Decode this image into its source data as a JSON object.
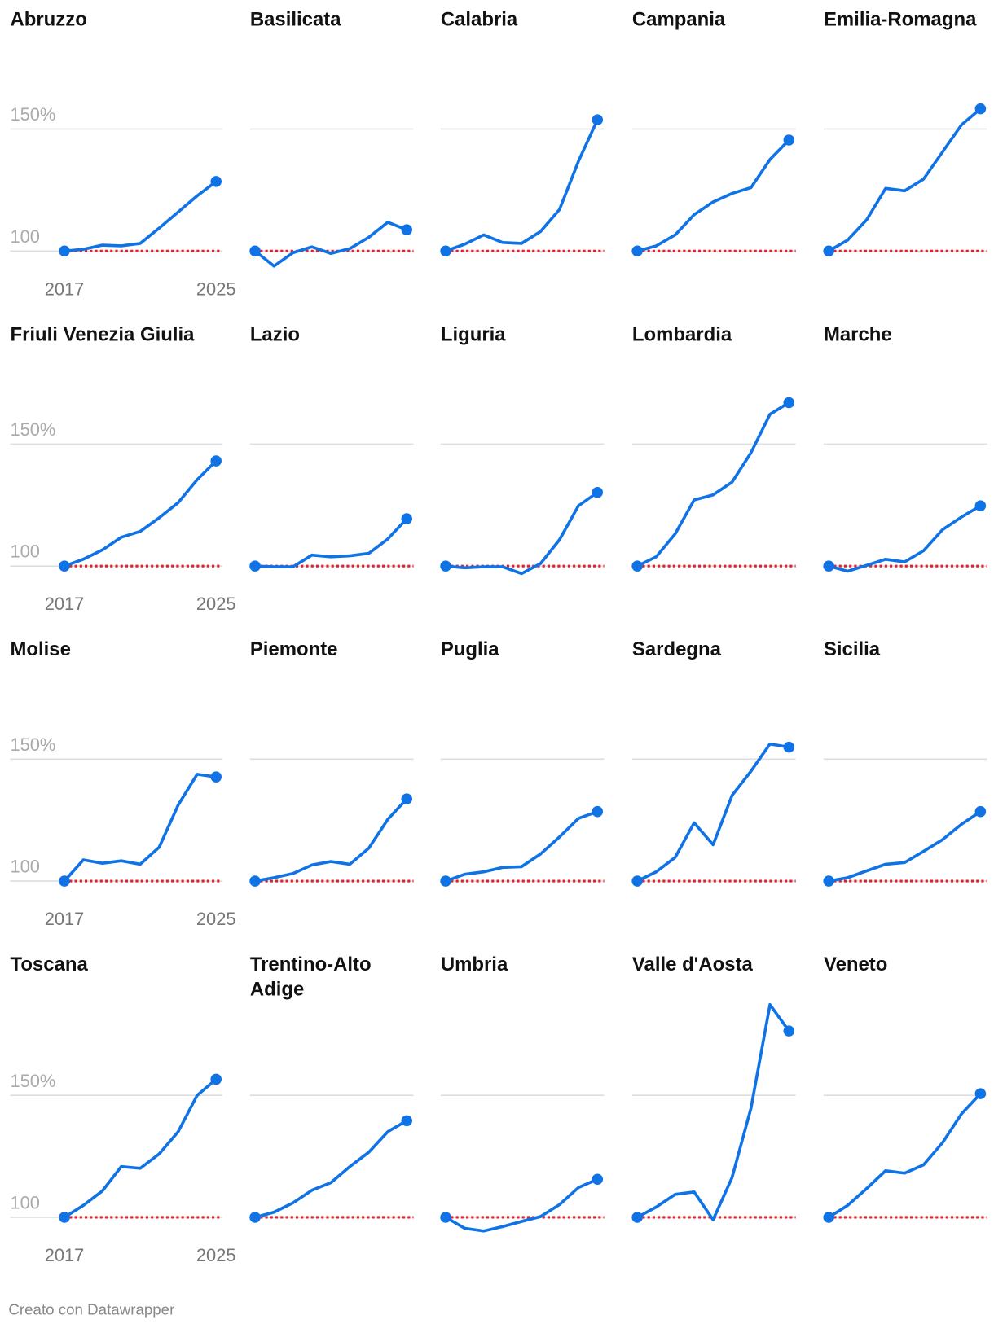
{
  "chart_data": {
    "type": "line",
    "x": [
      2017,
      2018,
      2019,
      2020,
      2021,
      2022,
      2023,
      2024,
      2025
    ],
    "xlim": [
      2017,
      2025
    ],
    "xticks": [
      2017,
      2025
    ],
    "ylim": [
      90,
      190
    ],
    "yticks": [
      100,
      {
        "value": 150,
        "label": "150%"
      }
    ],
    "grid": true,
    "baseline": 100,
    "baseline_color": "#e0202a",
    "color": "#0f73e6",
    "series": [
      {
        "name": "Abruzzo",
        "values": [
          100,
          100.7,
          102.4,
          102.1,
          103.1,
          109.4,
          116.0,
          122.6,
          128.5
        ]
      },
      {
        "name": "Basilicata",
        "values": [
          100,
          93.8,
          99.3,
          101.7,
          99.0,
          101.0,
          105.6,
          111.8,
          108.7
        ]
      },
      {
        "name": "Calabria",
        "values": [
          100,
          102.8,
          106.6,
          103.5,
          103.1,
          108.0,
          117.0,
          136.8,
          153.8
        ]
      },
      {
        "name": "Campania",
        "values": [
          100,
          102.1,
          106.6,
          114.9,
          120.1,
          123.6,
          126.0,
          137.5,
          145.5
        ]
      },
      {
        "name": "Emilia-Romagna",
        "values": [
          100,
          104.5,
          112.8,
          125.7,
          124.7,
          129.5,
          140.6,
          151.7,
          158.3
        ]
      },
      {
        "name": "Friuli Venezia Giulia",
        "values": [
          100,
          102.8,
          106.6,
          111.8,
          114.2,
          119.8,
          126.0,
          135.4,
          143.1
        ]
      },
      {
        "name": "Lazio",
        "values": [
          100,
          99.7,
          99.7,
          104.5,
          103.8,
          104.2,
          105.2,
          111.1,
          119.4
        ]
      },
      {
        "name": "Liguria",
        "values": [
          100,
          99.3,
          99.7,
          99.7,
          96.9,
          101.0,
          110.8,
          124.7,
          130.2
        ]
      },
      {
        "name": "Lombardia",
        "values": [
          100,
          103.8,
          113.2,
          127.1,
          129.2,
          134.4,
          146.5,
          162.2,
          167.0
        ]
      },
      {
        "name": "Marche",
        "values": [
          100,
          97.9,
          100.3,
          102.8,
          101.7,
          106.3,
          114.9,
          120.1,
          124.7
        ]
      },
      {
        "name": "Molise",
        "values": [
          100,
          108.7,
          107.3,
          108.3,
          106.9,
          113.9,
          131.2,
          143.8,
          142.7
        ]
      },
      {
        "name": "Piemonte",
        "values": [
          100,
          101.4,
          103.1,
          106.6,
          108.0,
          106.9,
          113.5,
          125.3,
          133.7
        ]
      },
      {
        "name": "Puglia",
        "values": [
          100,
          102.8,
          103.8,
          105.6,
          105.9,
          111.1,
          118.1,
          125.7,
          128.5
        ]
      },
      {
        "name": "Sardegna",
        "values": [
          100,
          103.8,
          109.7,
          123.9,
          114.9,
          135.1,
          145.1,
          156.2,
          154.9
        ]
      },
      {
        "name": "Sicilia",
        "values": [
          100,
          101.4,
          104.2,
          106.9,
          107.6,
          112.2,
          117.0,
          123.3,
          128.5
        ]
      },
      {
        "name": "Toscana",
        "values": [
          100,
          104.9,
          110.8,
          120.8,
          120.1,
          126.0,
          135.1,
          150.0,
          156.6
        ]
      },
      {
        "name": "Trentino-Alto Adige",
        "values": [
          100,
          102.1,
          105.9,
          111.1,
          114.2,
          120.8,
          126.7,
          135.1,
          139.6
        ]
      },
      {
        "name": "Umbria",
        "values": [
          100,
          95.5,
          94.4,
          96.2,
          98.3,
          100.3,
          105.2,
          112.2,
          115.6
        ]
      },
      {
        "name": "Valle d'Aosta",
        "values": [
          100,
          104.2,
          109.4,
          110.4,
          99.0,
          116.3,
          144.8,
          187.2,
          176.4
        ]
      },
      {
        "name": "Veneto",
        "values": [
          100,
          104.9,
          111.8,
          119.1,
          118.1,
          121.5,
          130.6,
          142.4,
          150.7
        ]
      }
    ],
    "footer": "Creato con Datawrapper"
  }
}
